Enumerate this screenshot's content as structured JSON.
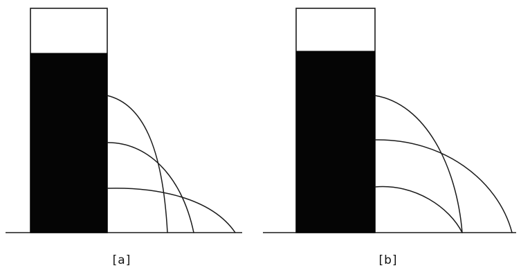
{
  "figure": {
    "panels": [
      {
        "id": "a",
        "label": "[a]",
        "jets": 3,
        "jets_meet_at_single_point": false
      },
      {
        "id": "b",
        "label": "[b]",
        "jets": 3,
        "jets_meet_at_single_point": true
      }
    ],
    "colors": {
      "ink": "#1a1a1a",
      "water": "#050505",
      "background": "#ffffff"
    }
  }
}
